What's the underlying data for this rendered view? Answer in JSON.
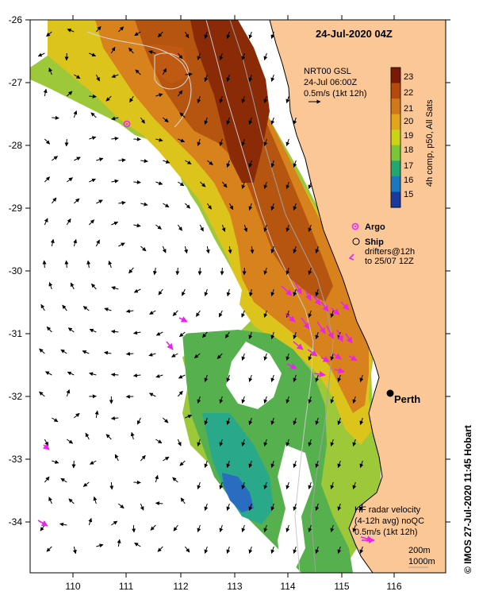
{
  "title": "24-Jul-2020 04Z",
  "overlay": {
    "line1": "NRT00 GSL",
    "line2": "24-Jul 06:00Z",
    "line3": "0.5m/s (1kt 12h)"
  },
  "colorbar": {
    "ticks": [
      "23",
      "22",
      "21",
      "20",
      "19",
      "18",
      "17",
      "16",
      "15"
    ],
    "label": "4h comp, p50, All Sats",
    "colors": [
      "#7a1a05",
      "#b44a0c",
      "#d2781a",
      "#e3a51a",
      "#cbd414",
      "#7ac63a",
      "#20a870",
      "#1a78c0",
      "#1a3aa0"
    ]
  },
  "legend": {
    "argo": "Argo",
    "ship": "Ship",
    "drifters": "drifters@12h",
    "drifters2": "to 25/07 12Z",
    "argo_color": "#ee33ee",
    "drifter_color": "#ee22ee"
  },
  "axes": {
    "lat_labels": [
      "-26",
      "-27",
      "-28",
      "-29",
      "-30",
      "-31",
      "-32",
      "-33",
      "-34"
    ],
    "lon_labels": [
      "110",
      "111",
      "112",
      "113",
      "114",
      "115",
      "116"
    ]
  },
  "place": {
    "name": "Perth"
  },
  "hf_radar": {
    "line1": "HF radar velocity",
    "line2": "(4-12h avg) noQC",
    "line3": "0.5m/s (1kt 12h)"
  },
  "depth_legend": {
    "d1": "200m",
    "d2": "1000m"
  },
  "credit": "© IMOS 27-Jul-2020 11:45 Hobart",
  "colors": {
    "land": "#fbc797",
    "grid_text": "#000000"
  }
}
